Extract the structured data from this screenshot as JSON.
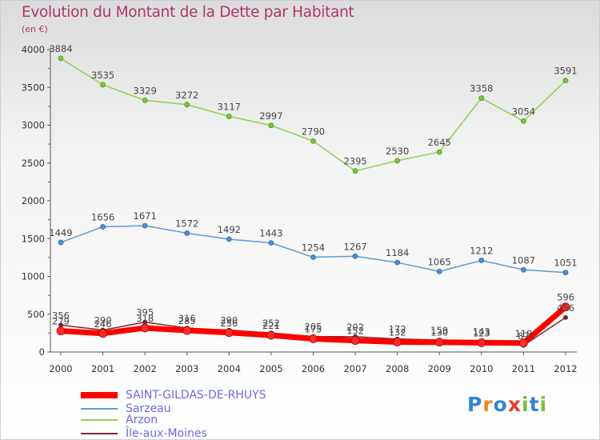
{
  "title": "Evolution du Montant de la Dette par Habitant",
  "subtitle": "(en €)",
  "logo": {
    "text": "Proxiti",
    "letters": [
      "P",
      "r",
      "o",
      "x",
      "i",
      "t",
      "i"
    ],
    "letter_colors": [
      "#2f86d6",
      "#f08a1c",
      "#2f86d6",
      "#e53b2f",
      "#7bbf3a",
      "#2f86d6",
      "#7bbf3a"
    ]
  },
  "chart_data": {
    "type": "line",
    "x": [
      "2000",
      "2001",
      "2002",
      "2003",
      "2004",
      "2005",
      "2006",
      "2007",
      "2008",
      "2009",
      "2010",
      "2011",
      "2012"
    ],
    "ylim": [
      0,
      4000
    ],
    "yticks": [
      0,
      500,
      1000,
      1500,
      2000,
      2500,
      3000,
      3500,
      4000
    ],
    "grid": false,
    "legend": "bottom-left",
    "series": [
      {
        "name": "SAINT-GILDAS-DE-RHUYS",
        "color": "#ff0000",
        "values": [
          279,
          246,
          318,
          285,
          256,
          221,
          175,
          152,
          132,
          130,
          123,
          119,
          596
        ]
      },
      {
        "name": "Sarzeau",
        "color": "#5b9bd5",
        "values": [
          1449,
          1656,
          1671,
          1572,
          1492,
          1443,
          1254,
          1267,
          1184,
          1065,
          1212,
          1087,
          1051
        ]
      },
      {
        "name": "Arzon",
        "color": "#8fd14f",
        "values": [
          3884,
          3535,
          3329,
          3272,
          3117,
          2997,
          2790,
          2395,
          2530,
          2645,
          3358,
          3054,
          3591
        ]
      },
      {
        "name": "Île-aux-Moines",
        "color": "#7a2a3a",
        "values": [
          356,
          290,
          395,
          316,
          290,
          252,
          205,
          202,
          172,
          159,
          143,
          87,
          456
        ]
      }
    ]
  }
}
